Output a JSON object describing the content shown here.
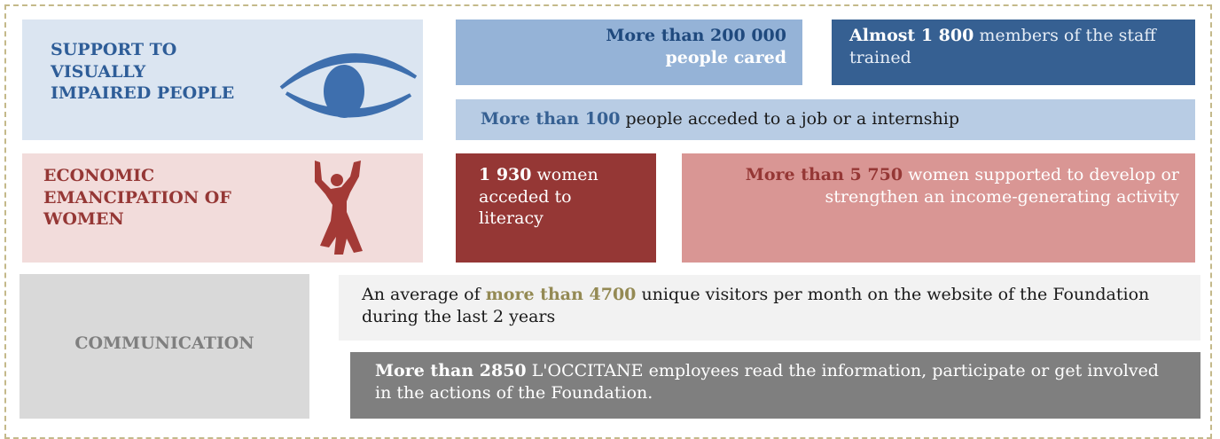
{
  "sections": [
    {
      "title_lines": [
        "SUPPORT TO",
        "VISUALLY",
        "IMPAIRED PEOPLE"
      ],
      "stats": [
        {
          "parts": [
            "More than 200 000",
            "people cared"
          ]
        },
        {
          "parts": [
            "Almost 1 800",
            "members of the staff trained"
          ]
        },
        {
          "parts": [
            "More than 100",
            "people acceded to a job or a internship"
          ]
        }
      ]
    },
    {
      "title_lines": [
        "ECONOMIC",
        "EMANCIPATION OF",
        "WOMEN"
      ],
      "stats": [
        {
          "parts": [
            "1 930",
            "women acceded to literacy"
          ]
        },
        {
          "parts": [
            "More than 5 750",
            "women supported to develop or strengthen an income-generating activity"
          ]
        }
      ]
    },
    {
      "title_lines": [
        "COMMUNICATION"
      ],
      "stats": [
        {
          "parts": [
            "An average of",
            "more than 4700",
            "unique visitors per month on the website of the Foundation during the last 2 years"
          ]
        },
        {
          "parts": [
            "More than 2850",
            "L'OCCITANE employees read the information, participate or get involved in the actions of the Foundation."
          ]
        }
      ]
    }
  ]
}
